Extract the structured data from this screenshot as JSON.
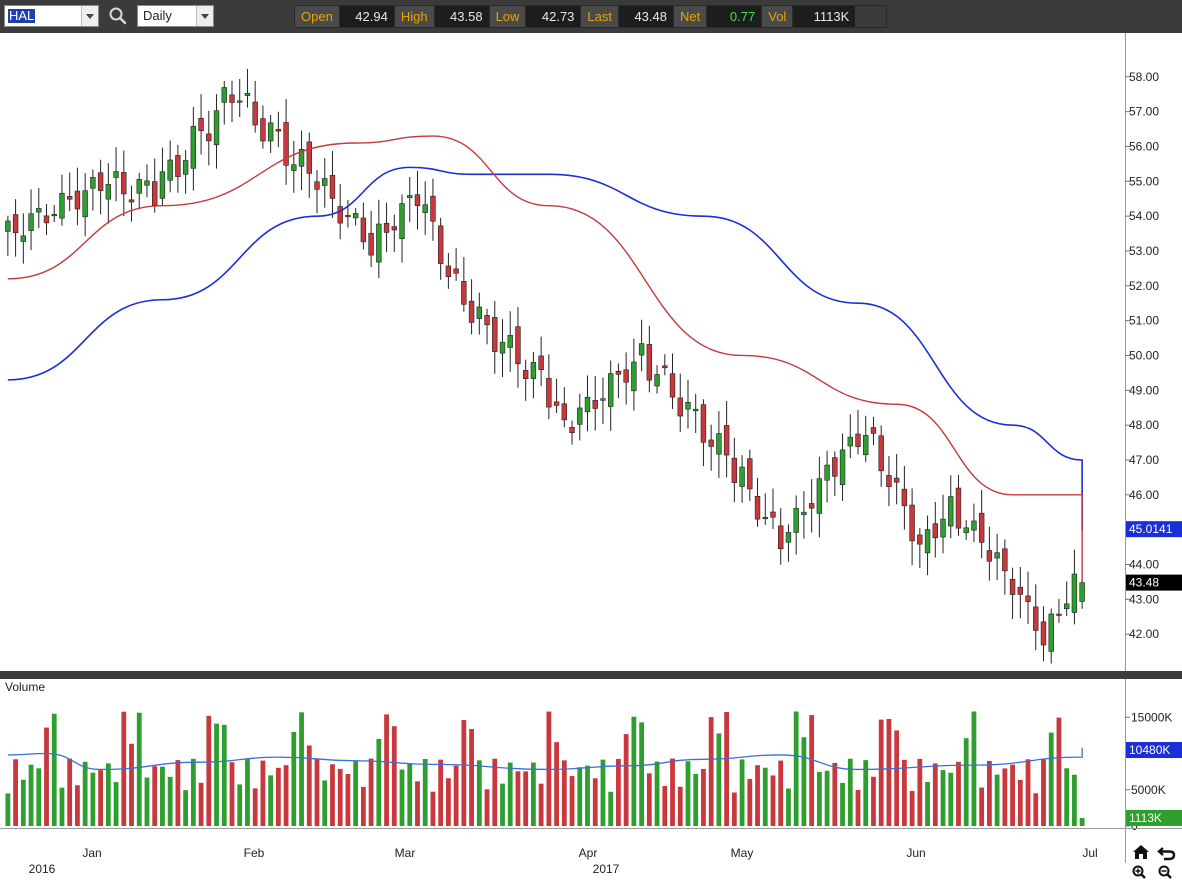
{
  "toolbar": {
    "symbol": "HAL",
    "period": "Daily",
    "quote": {
      "open_label": "Open",
      "open": "42.94",
      "high_label": "High",
      "high": "43.58",
      "low_label": "Low",
      "low": "42.73",
      "last_label": "Last",
      "last": "43.48",
      "net_label": "Net",
      "net": "0.77",
      "vol_label": "Vol",
      "vol": "1113K"
    }
  },
  "colors": {
    "up": "#2e9e2e",
    "down": "#c8383c",
    "ma_short": "#c8383c",
    "ma_long": "#1a2fd6",
    "volume_avg": "#3a6fd8",
    "toolbar_bg": "#3b3b3b",
    "quote_label": "#e8a400",
    "quote_net": "#3fe04a"
  },
  "chart_data": [
    {
      "type": "candlestick",
      "y_axis_ticks": [
        "58.00",
        "57.00",
        "56.00",
        "55.00",
        "54.00",
        "53.00",
        "52.00",
        "51.00",
        "50.00",
        "49.00",
        "48.00",
        "47.00",
        "46.00",
        "45.00",
        "44.00",
        "43.00",
        "42.00"
      ],
      "ylim": [
        41.0,
        59.2
      ],
      "x_tick_labels": [
        "Jan",
        "Feb",
        "Mar",
        "Apr",
        "May",
        "Jun",
        "Jul"
      ],
      "x_year_labels": [
        "2016",
        "2017"
      ],
      "badges": [
        {
          "label": "45.0141",
          "value": 45.0141,
          "color": "#1a2fd6"
        },
        {
          "label": "43.48",
          "value": 43.48,
          "color": "#000000"
        }
      ],
      "segments": [
        {
          "n": 13,
          "to": 54.9,
          "amp": 0.35
        },
        {
          "n": 7,
          "to": 54.7,
          "amp": 0.45
        },
        {
          "n": 10,
          "to": 57.5,
          "amp": 0.5
        },
        {
          "n": 10,
          "to": 55.2,
          "amp": 0.5
        },
        {
          "n": 8,
          "to": 53.2,
          "amp": 0.4
        },
        {
          "n": 6,
          "to": 54.6,
          "amp": 0.35
        },
        {
          "n": 6,
          "to": 51.4,
          "amp": 0.45
        },
        {
          "n": 10,
          "to": 49.3,
          "amp": 0.45
        },
        {
          "n": 3,
          "to": 47.9,
          "amp": 0.35
        },
        {
          "n": 10,
          "to": 50.0,
          "amp": 0.35
        },
        {
          "n": 12,
          "to": 46.8,
          "amp": 0.45
        },
        {
          "n": 6,
          "to": 44.6,
          "amp": 0.4
        },
        {
          "n": 6,
          "to": 46.6,
          "amp": 0.35
        },
        {
          "n": 5,
          "to": 47.9,
          "amp": 0.35
        },
        {
          "n": 7,
          "to": 44.6,
          "amp": 0.4
        },
        {
          "n": 4,
          "to": 45.6,
          "amp": 0.35
        },
        {
          "n": 6,
          "to": 44.2,
          "amp": 0.35
        },
        {
          "n": 6,
          "to": 41.9,
          "amp": 0.3
        },
        {
          "n": 4,
          "to": 43.5,
          "amp": 0.3
        }
      ],
      "ma_short_points": [
        [
          0,
          52.2
        ],
        [
          20,
          54.3
        ],
        [
          45,
          56.1
        ],
        [
          55,
          56.3
        ],
        [
          70,
          54.3
        ],
        [
          95,
          50.0
        ],
        [
          115,
          48.6
        ],
        [
          130,
          46.0
        ],
        [
          150,
          46.0
        ],
        [
          165,
          45.6
        ],
        [
          175,
          43.5
        ]
      ],
      "ma_long_points": [
        [
          0,
          49.3
        ],
        [
          20,
          51.6
        ],
        [
          40,
          54.0
        ],
        [
          52,
          55.4
        ],
        [
          60,
          55.2
        ],
        [
          70,
          55.2
        ],
        [
          90,
          54.0
        ],
        [
          110,
          51.5
        ],
        [
          130,
          48.0
        ],
        [
          145,
          47.0
        ],
        [
          160,
          46.3
        ],
        [
          175,
          45.0
        ]
      ],
      "last_candle": {
        "open": 42.94,
        "high": 43.58,
        "low": 42.73,
        "close": 43.48
      }
    },
    {
      "type": "bar",
      "title": "Volume",
      "y_axis_ticks": [
        "15000K",
        "5000K",
        "0"
      ],
      "ylim": [
        0,
        20000
      ],
      "badges": [
        {
          "label": "10480K",
          "value": 10480,
          "color": "#1a2fd6"
        },
        {
          "label": "1113K",
          "value": 1113,
          "color": "#2e9e2e"
        }
      ],
      "volume_avg_points": [
        [
          0,
          9800
        ],
        [
          5,
          10000
        ],
        [
          12,
          7800
        ],
        [
          25,
          8800
        ],
        [
          35,
          9500
        ],
        [
          45,
          9000
        ],
        [
          55,
          8500
        ],
        [
          70,
          7800
        ],
        [
          80,
          8300
        ],
        [
          90,
          9200
        ],
        [
          100,
          9800
        ],
        [
          110,
          7800
        ],
        [
          125,
          8400
        ],
        [
          140,
          9500
        ],
        [
          150,
          10200
        ],
        [
          160,
          10800
        ],
        [
          175,
          10480
        ]
      ],
      "last_volume": 1113
    }
  ]
}
